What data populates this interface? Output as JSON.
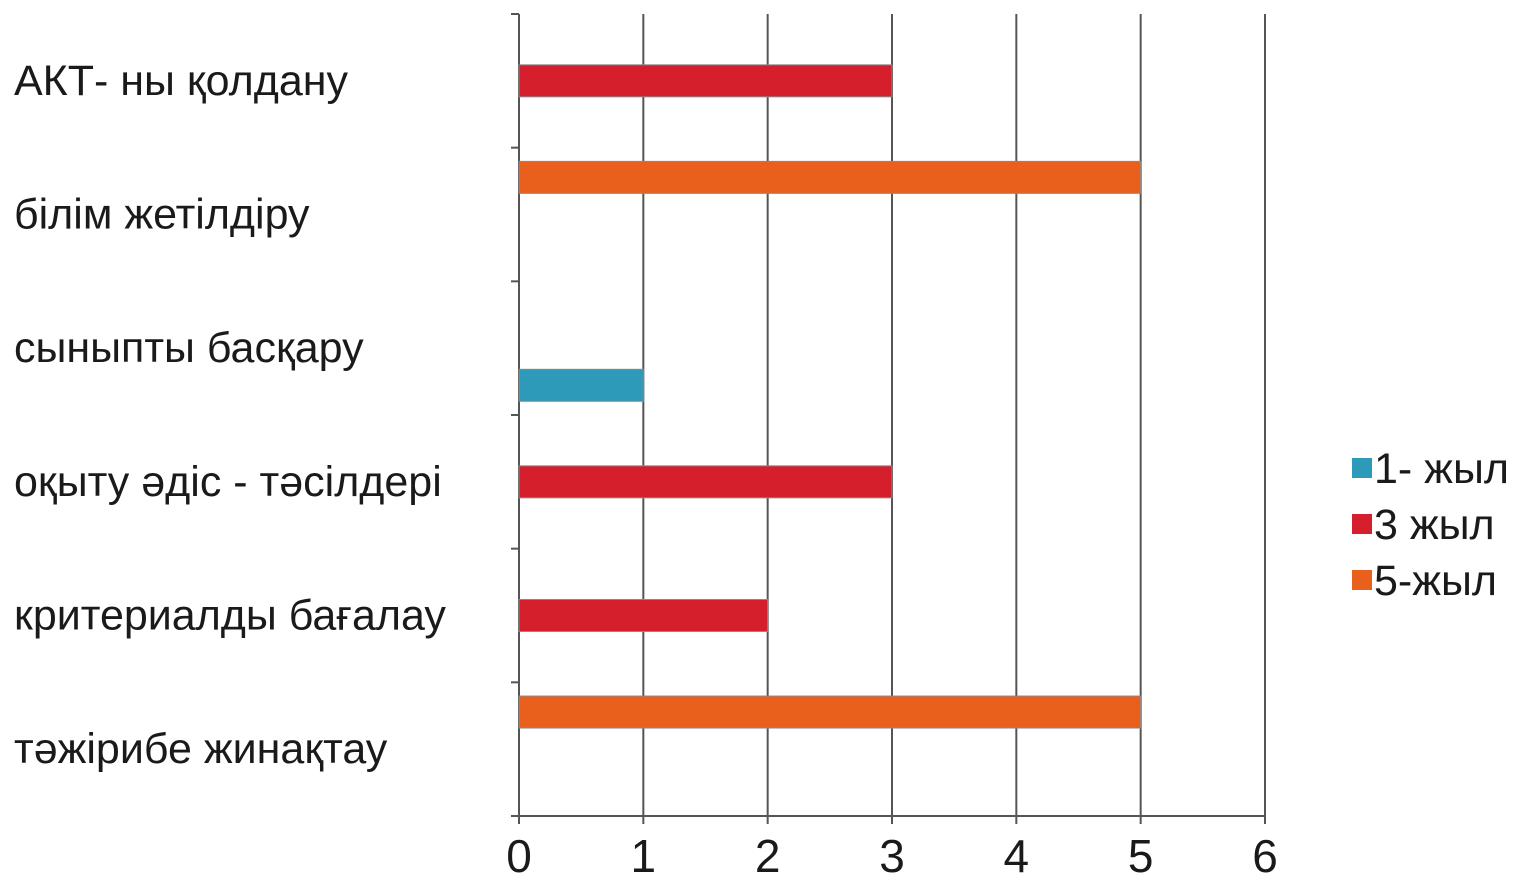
{
  "chart_data": {
    "type": "bar",
    "orientation": "horizontal",
    "title": "",
    "xlabel": "",
    "ylabel": "",
    "categories": [
      "АКТ- ны қолдану",
      "білім жетілдіру",
      "сыныпты басқару",
      "оқыту әдіс - тәсілдері",
      "критериалды бағалау",
      "тәжірибе жинақтау"
    ],
    "series": [
      {
        "name": "1- жыл",
        "color": "#2e9ab9",
        "values": [
          0,
          0,
          1,
          0,
          0,
          0
        ]
      },
      {
        "name": "3 жыл",
        "color": "#d61f2c",
        "values": [
          3,
          0,
          0,
          3,
          2,
          0
        ]
      },
      {
        "name": "5-жыл",
        "color": "#e8601c",
        "values": [
          0,
          5,
          0,
          0,
          0,
          5
        ]
      }
    ],
    "xlim": [
      0,
      6
    ],
    "xticks": [
      "0",
      "1",
      "2",
      "3",
      "4",
      "5",
      "6"
    ],
    "grid": "vertical",
    "legend_position": "right"
  }
}
